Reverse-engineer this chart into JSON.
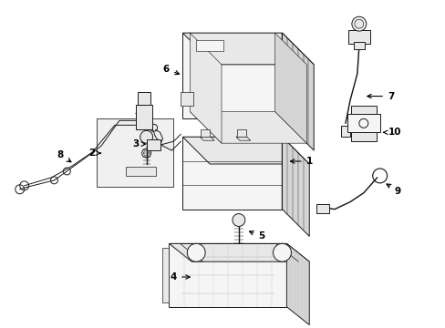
{
  "background_color": "#ffffff",
  "line_color": "#1a1a1a",
  "label_color": "#000000",
  "figsize": [
    4.89,
    3.6
  ],
  "dpi": 100,
  "lw": 0.7,
  "fill_light": "#f5f5f5",
  "fill_mid": "#e8e8e8",
  "fill_dark": "#d5d5d5",
  "fill_hatch": "#ececec"
}
